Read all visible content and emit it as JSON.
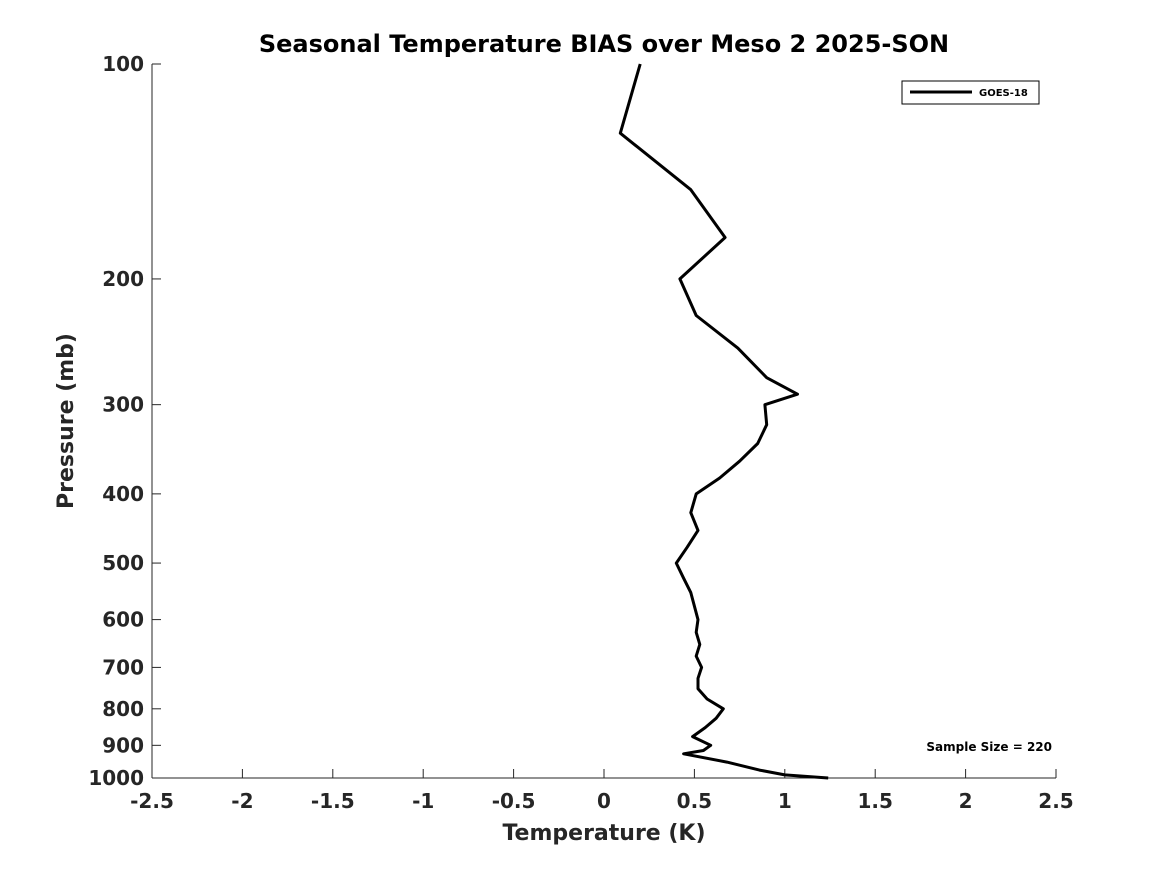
{
  "chart_data": {
    "type": "line",
    "title": "Seasonal Temperature BIAS over Meso 2  2025-SON",
    "xlabel": "Temperature (K)",
    "ylabel": "Pressure (mb)",
    "xlim": [
      -2.5,
      2.5
    ],
    "ylim": [
      100,
      1000
    ],
    "y_scale": "log",
    "y_reversed": true,
    "xticks": [
      -2.5,
      -2,
      -1.5,
      -1,
      -0.5,
      0,
      0.5,
      1,
      1.5,
      2,
      2.5
    ],
    "xtick_labels": [
      "-2.5",
      "-2",
      "-1.5",
      "-1",
      "-0.5",
      "0",
      "0.5",
      "1",
      "1.5",
      "2",
      "2.5"
    ],
    "yticks": [
      100,
      200,
      300,
      400,
      500,
      600,
      700,
      800,
      900,
      1000
    ],
    "ytick_labels": [
      "100",
      "200",
      "300",
      "400",
      "500",
      "600",
      "700",
      "800",
      "900",
      "1000"
    ],
    "grid": false,
    "legend_position": "top-right",
    "series": [
      {
        "name": "GOES-18",
        "color": "#000000",
        "points": [
          [
            0.2,
            100
          ],
          [
            0.09,
            125
          ],
          [
            0.48,
            150
          ],
          [
            0.67,
            175
          ],
          [
            0.42,
            200
          ],
          [
            0.51,
            225
          ],
          [
            0.74,
            250
          ],
          [
            0.9,
            275
          ],
          [
            1.07,
            290
          ],
          [
            0.89,
            300
          ],
          [
            0.9,
            320
          ],
          [
            0.85,
            340
          ],
          [
            0.75,
            360
          ],
          [
            0.64,
            380
          ],
          [
            0.51,
            400
          ],
          [
            0.48,
            425
          ],
          [
            0.52,
            450
          ],
          [
            0.46,
            475
          ],
          [
            0.4,
            500
          ],
          [
            0.44,
            525
          ],
          [
            0.48,
            550
          ],
          [
            0.52,
            600
          ],
          [
            0.51,
            625
          ],
          [
            0.53,
            650
          ],
          [
            0.51,
            675
          ],
          [
            0.54,
            700
          ],
          [
            0.52,
            725
          ],
          [
            0.52,
            750
          ],
          [
            0.57,
            775
          ],
          [
            0.66,
            800
          ],
          [
            0.62,
            825
          ],
          [
            0.56,
            850
          ],
          [
            0.49,
            875
          ],
          [
            0.59,
            900
          ],
          [
            0.55,
            915
          ],
          [
            0.44,
            925
          ],
          [
            0.68,
            950
          ],
          [
            0.86,
            975
          ],
          [
            1.0,
            990
          ],
          [
            1.24,
            1000
          ]
        ]
      }
    ],
    "annotations": [
      {
        "text": "Sample Size = 220",
        "position": "bottom-right"
      }
    ]
  }
}
